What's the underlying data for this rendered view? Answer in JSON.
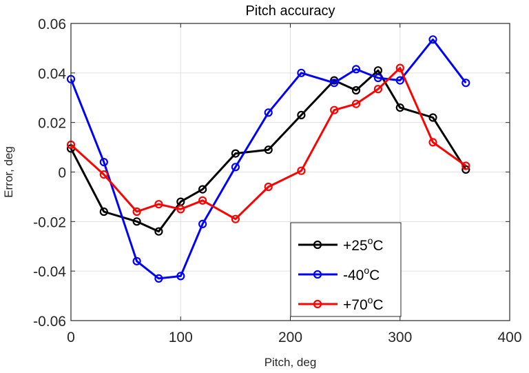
{
  "chart_data": {
    "type": "line",
    "title": "Pitch accuracy",
    "xlabel": "Pitch, deg",
    "ylabel": "Error, deg",
    "xlim": [
      0,
      400
    ],
    "ylim": [
      -0.06,
      0.06
    ],
    "xticks": [
      0,
      100,
      200,
      300,
      400
    ],
    "yticks": [
      -0.06,
      -0.04,
      -0.02,
      0,
      0.02,
      0.04,
      0.06
    ],
    "xtick_labels": [
      "0",
      "100",
      "200",
      "300",
      "400"
    ],
    "ytick_labels": [
      "-0.06",
      "-0.04",
      "-0.02",
      "0",
      "0.02",
      "0.04",
      "0.06"
    ],
    "grid": true,
    "legend_position": "bottom-right",
    "series": [
      {
        "name": "+25°C",
        "legend": {
          "prefix": "+25",
          "sup": "o",
          "suffix": "C"
        },
        "color": "#000000",
        "x": [
          0,
          30,
          60,
          80,
          100,
          120,
          150,
          180,
          210,
          240,
          260,
          280,
          300,
          330,
          360
        ],
        "y": [
          0.0095,
          -0.016,
          -0.02,
          -0.024,
          -0.012,
          -0.007,
          0.0075,
          0.009,
          0.023,
          0.037,
          0.033,
          0.041,
          0.026,
          0.022,
          0.001
        ]
      },
      {
        "name": "-40°C",
        "legend": {
          "prefix": "-40",
          "sup": "o",
          "suffix": "C"
        },
        "color": "#0000ff",
        "x": [
          0,
          30,
          60,
          80,
          100,
          120,
          150,
          180,
          210,
          240,
          260,
          280,
          300,
          330,
          360
        ],
        "y": [
          0.0375,
          0.004,
          -0.036,
          -0.043,
          -0.042,
          -0.021,
          0.002,
          0.024,
          0.04,
          0.036,
          0.0415,
          0.038,
          0.037,
          0.0535,
          0.036
        ]
      },
      {
        "name": "+70°C",
        "legend": {
          "prefix": "+70",
          "sup": "o",
          "suffix": "C"
        },
        "color": "#ff0000",
        "x": [
          0,
          30,
          60,
          80,
          100,
          120,
          150,
          180,
          210,
          240,
          260,
          280,
          300,
          330,
          360
        ],
        "y": [
          0.011,
          -0.001,
          -0.016,
          -0.013,
          -0.015,
          -0.0115,
          -0.019,
          -0.006,
          0.0005,
          0.025,
          0.0275,
          0.0335,
          0.042,
          0.012,
          0.0025
        ]
      }
    ]
  }
}
